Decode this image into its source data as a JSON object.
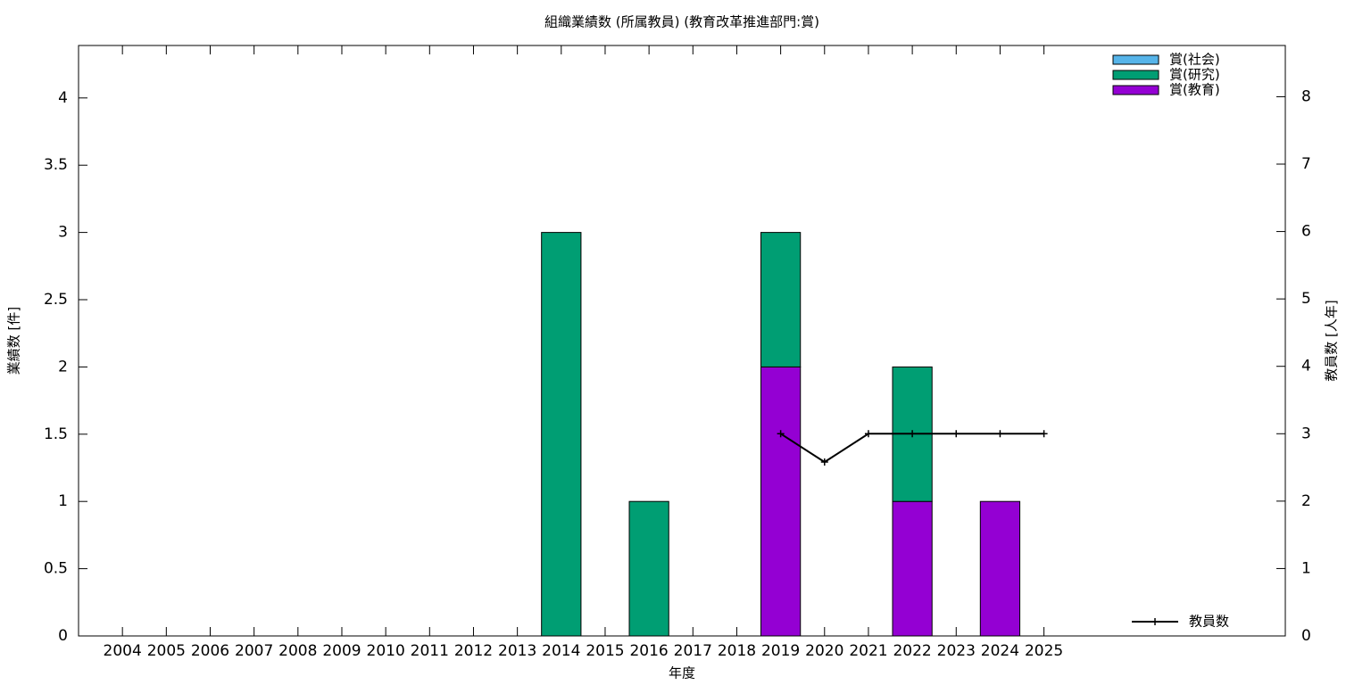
{
  "chart_data": {
    "type": "bar",
    "title": "組織業績数 (所属教員) (教育改革推進部門:賞)",
    "x_label": "年度",
    "y_label": "業績数 [件]",
    "y2_label": "教員数 [人年]",
    "stacked": true,
    "categories": [
      "2004",
      "2005",
      "2006",
      "2007",
      "2008",
      "2009",
      "2010",
      "2011",
      "2012",
      "2013",
      "2014",
      "2015",
      "2016",
      "2017",
      "2018",
      "2019",
      "2020",
      "2021",
      "2022",
      "2023",
      "2024",
      "2025"
    ],
    "series": [
      {
        "name": "賞(社会)",
        "color": "#56b4e9",
        "values": [
          0,
          0,
          0,
          0,
          0,
          0,
          0,
          0,
          0,
          0,
          0,
          0,
          0,
          0,
          0,
          0,
          0,
          0,
          0,
          0,
          0,
          0
        ]
      },
      {
        "name": "賞(研究)",
        "color": "#009e73",
        "values": [
          0,
          0,
          0,
          0,
          0,
          0,
          0,
          0,
          0,
          0,
          3,
          0,
          1,
          0,
          0,
          1,
          0,
          0,
          1,
          0,
          0,
          0
        ]
      },
      {
        "name": "賞(教育)",
        "color": "#9400d3",
        "values": [
          0,
          0,
          0,
          0,
          0,
          0,
          0,
          0,
          0,
          0,
          0,
          0,
          0,
          0,
          0,
          2,
          0,
          0,
          1,
          0,
          1,
          0
        ]
      },
      {
        "name": "教員数",
        "type": "line",
        "axis": "y2",
        "color": "#000000",
        "values": [
          null,
          null,
          null,
          null,
          null,
          null,
          null,
          null,
          null,
          null,
          null,
          null,
          null,
          null,
          null,
          3,
          2.58,
          3,
          3,
          3,
          3,
          3
        ]
      }
    ],
    "ylim": [
      0,
      4.39
    ],
    "yticks": [
      0,
      0.5,
      1,
      1.5,
      2,
      2.5,
      3,
      3.5,
      4
    ],
    "y2lim": [
      0,
      8.76
    ],
    "y2ticks": [
      0,
      1,
      2,
      3,
      4,
      5,
      6,
      7,
      8
    ],
    "legend": "top-right"
  }
}
